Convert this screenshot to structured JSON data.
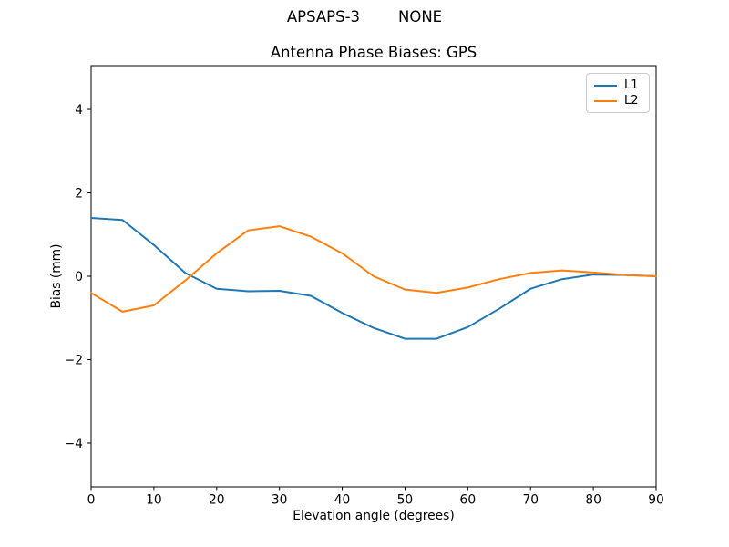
{
  "chart_data": {
    "type": "line",
    "suptitle": "APSAPS-3        NONE",
    "title": "Antenna Phase Biases: GPS",
    "xlabel": "Elevation angle (degrees)",
    "ylabel": "Bias (mm)",
    "xlim": [
      0,
      90
    ],
    "ylim": [
      -5.05,
      5.05
    ],
    "x_ticks": [
      0,
      10,
      20,
      30,
      40,
      50,
      60,
      70,
      80,
      90
    ],
    "y_ticks": [
      -4,
      -2,
      0,
      2,
      4
    ],
    "grid": false,
    "legend": {
      "position": "upper right",
      "entries": [
        "L1",
        "L2"
      ]
    },
    "x": [
      0,
      5,
      10,
      15,
      20,
      25,
      30,
      35,
      40,
      45,
      50,
      55,
      60,
      65,
      70,
      75,
      80,
      85,
      90
    ],
    "series": [
      {
        "name": "L1",
        "color": "#1f77b4",
        "values": [
          1.4,
          1.35,
          0.75,
          0.08,
          -0.3,
          -0.36,
          -0.35,
          -0.47,
          -0.88,
          -1.24,
          -1.5,
          -1.5,
          -1.22,
          -0.78,
          -0.3,
          -0.07,
          0.04,
          0.03,
          0.0
        ]
      },
      {
        "name": "L2",
        "color": "#ff7f0e",
        "values": [
          -0.4,
          -0.85,
          -0.7,
          -0.1,
          0.55,
          1.1,
          1.2,
          0.95,
          0.55,
          0.0,
          -0.32,
          -0.4,
          -0.27,
          -0.07,
          0.08,
          0.14,
          0.09,
          0.03,
          0.0
        ]
      }
    ],
    "axis_color": "#000000",
    "background_color": "#ffffff",
    "tick_label_color": "#000000"
  }
}
